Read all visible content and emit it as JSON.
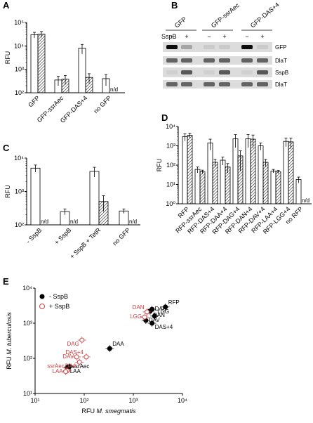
{
  "panels": {
    "A": "A",
    "B": "B",
    "C": "C",
    "D": "D",
    "E": "E"
  },
  "nd_label": "n/d",
  "chart_data": [
    {
      "id": "A",
      "type": "bar",
      "ylabel": "RFU",
      "yscale": "log",
      "ylim": [
        100,
        100000
      ],
      "yticks": [
        "10²",
        "10³",
        "10⁴",
        "10⁵"
      ],
      "categories": [
        "GFP",
        "GFP-ssrAec",
        "GFP-DAS+4",
        "no GFP"
      ],
      "series": [
        {
          "values": [
            30000,
            350,
            8000,
            400
          ],
          "err": [
            8000,
            150,
            3500,
            200
          ]
        },
        {
          "values": [
            32000,
            380,
            450,
            null
          ],
          "err": [
            9000,
            160,
            200,
            null
          ]
        }
      ]
    },
    {
      "id": "C",
      "type": "bar",
      "ylabel": "RFU",
      "yscale": "log",
      "ylim": [
        100,
        10000
      ],
      "yticks": [
        "10²",
        "10³",
        "10⁴"
      ],
      "categories": [
        "- SspB",
        "+ SspB",
        "+ SspB + TetR",
        "no GFP"
      ],
      "series": [
        {
          "values": [
            5000,
            250,
            4000,
            260
          ],
          "err": [
            1200,
            50,
            1300,
            40
          ]
        },
        {
          "values": [
            null,
            null,
            500,
            null
          ],
          "err": [
            null,
            null,
            250,
            null
          ]
        }
      ]
    },
    {
      "id": "D",
      "type": "bar",
      "ylabel": "RFU",
      "yscale": "log",
      "ylim": [
        1,
        10000
      ],
      "yticks": [
        "10⁰",
        "10¹",
        "10²",
        "10³",
        "10⁴"
      ],
      "categories": [
        "RFP",
        "RFP-ssrAec",
        "RFP-DAS+4",
        "RFP-DAA+4",
        "RFP-DAG+4",
        "RFP-DAN+4",
        "RFP-DAV+4",
        "RFP-LAA+4",
        "RFP-LGG+4",
        "no RFP"
      ],
      "series": [
        {
          "values": [
            3000,
            60,
            1400,
            180,
            2300,
            2300,
            1000,
            50,
            1700,
            18
          ],
          "err": [
            1200,
            20,
            800,
            80,
            1500,
            1500,
            400,
            10,
            800,
            6
          ]
        },
        {
          "values": [
            3500,
            45,
            140,
            80,
            300,
            2200,
            140,
            45,
            1600,
            null
          ],
          "err": [
            1000,
            10,
            60,
            40,
            250,
            1400,
            60,
            8,
            900,
            null
          ]
        }
      ]
    },
    {
      "id": "E",
      "type": "scatter",
      "xlabel_pre": "RFU ",
      "xlabel_it": "M. smegmatis",
      "ylabel_pre": "RFU ",
      "ylabel_it": "M. tuberculosis",
      "xscale": "log",
      "yscale": "log",
      "xlim": [
        10,
        10000
      ],
      "ylim": [
        10,
        10000
      ],
      "ticks": [
        "10¹",
        "10²",
        "10³",
        "10⁴"
      ],
      "legend": [
        "- SspB",
        "+ SspB"
      ],
      "series": [
        {
          "name": "- SspB",
          "points": [
            {
              "label": "RFP",
              "x": 4500,
              "y": 2900
            },
            {
              "label": "DAG",
              "x": 2400,
              "y": 2500
            },
            {
              "label": "DAN",
              "x": 2200,
              "y": 2200
            },
            {
              "label": "LGG",
              "x": 2700,
              "y": 1600
            },
            {
              "label": "DAV",
              "x": 1800,
              "y": 1200
            },
            {
              "label": "DAS+4",
              "x": 2400,
              "y": 1000
            },
            {
              "label": "DAA",
              "x": 330,
              "y": 190
            },
            {
              "label": "ssrAec",
              "x": 50,
              "y": 58
            },
            {
              "label": "LAA",
              "x": 45,
              "y": 55
            }
          ]
        },
        {
          "name": "+ SspB",
          "points": [
            {
              "label": "DAN",
              "x": 1900,
              "y": 2100
            },
            {
              "label": "LGG",
              "x": 1700,
              "y": 1500
            },
            {
              "label": "DAG",
              "x": 90,
              "y": 330
            },
            {
              "label": "DAS+4",
              "x": 110,
              "y": 110
            },
            {
              "label": "DAV",
              "x": 70,
              "y": 110
            },
            {
              "label": "DAA",
              "x": 80,
              "y": 78
            },
            {
              "label": "ssrAec",
              "x": 45,
              "y": 45
            },
            {
              "label": "LAA",
              "x": 42,
              "y": 42
            }
          ]
        }
      ]
    }
  ],
  "blot": {
    "groups": [
      "GFP",
      "GFP-ssrAec",
      "GFP-DAS+4"
    ],
    "row_label": "SspB",
    "signs": [
      "−",
      "+",
      "−",
      "+",
      "−",
      "+"
    ],
    "bands": [
      "GFP",
      "DlaT",
      "SspB",
      "DlaT"
    ]
  }
}
